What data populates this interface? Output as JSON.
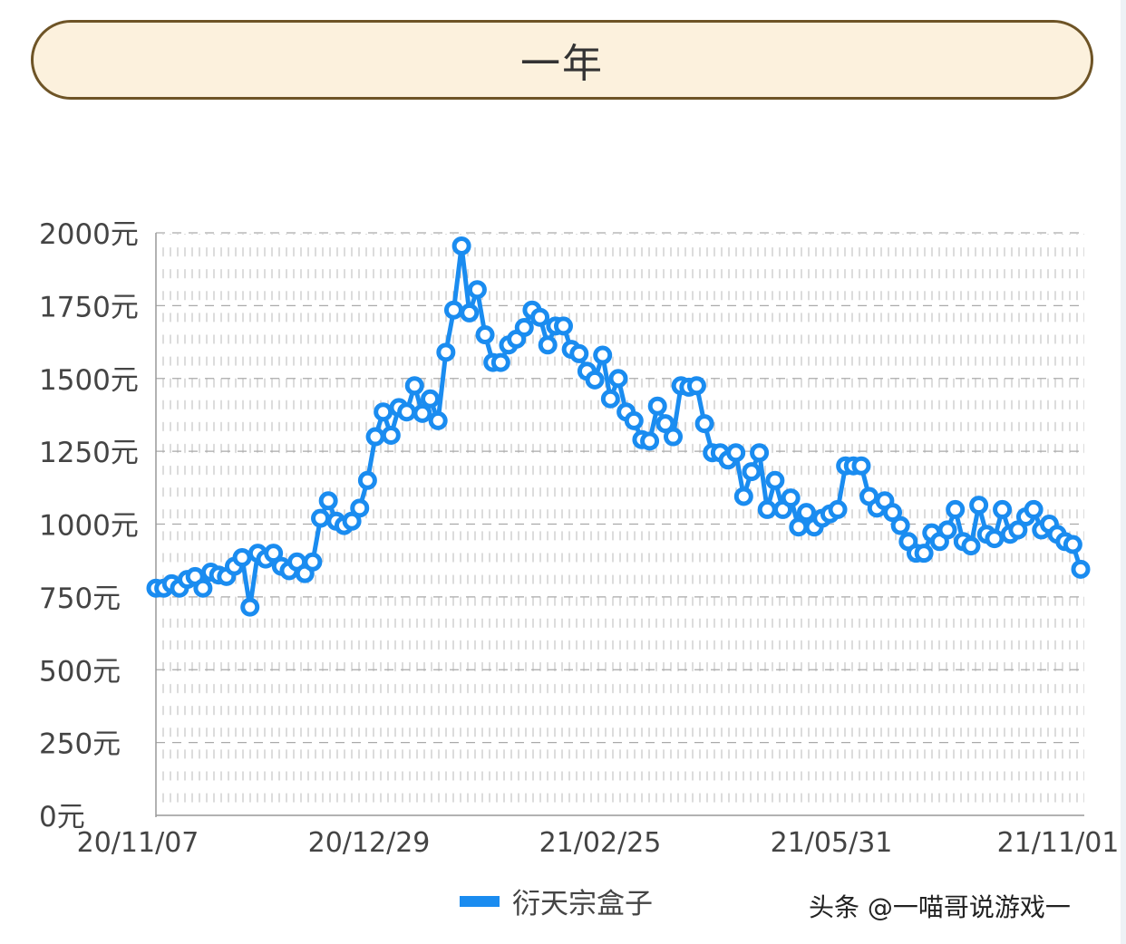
{
  "header": {
    "title": "一年"
  },
  "colors": {
    "line": "#1a8cf0",
    "header_fill": "#fcf1dd",
    "header_border": "#6e5426"
  },
  "watermark": "头条 @一喵哥说游戏一",
  "chart_data": {
    "type": "line",
    "title": "",
    "xlabel": "",
    "ylabel": "",
    "ylim": [
      0,
      2000
    ],
    "y_ticks": [
      0,
      250,
      500,
      750,
      1000,
      1250,
      1500,
      1750,
      2000
    ],
    "y_tick_labels": [
      "0元",
      "250元",
      "500元",
      "750元",
      "1000元",
      "1250元",
      "1500元",
      "1750元",
      "2000元"
    ],
    "x_tick_labels": [
      "20/11/07",
      "20/12/29",
      "21/02/25",
      "21/05/31",
      "21/11/01"
    ],
    "grid": true,
    "legend": "bottom",
    "series": [
      {
        "name": "衍天宗盒子",
        "values": [
          780,
          780,
          795,
          780,
          810,
          820,
          780,
          835,
          825,
          820,
          855,
          885,
          715,
          900,
          880,
          900,
          855,
          840,
          870,
          830,
          870,
          1020,
          1080,
          1010,
          995,
          1010,
          1055,
          1150,
          1300,
          1385,
          1305,
          1400,
          1385,
          1475,
          1380,
          1430,
          1355,
          1590,
          1735,
          1955,
          1725,
          1805,
          1650,
          1555,
          1555,
          1615,
          1635,
          1675,
          1735,
          1710,
          1615,
          1680,
          1680,
          1600,
          1585,
          1525,
          1495,
          1580,
          1430,
          1500,
          1385,
          1355,
          1290,
          1285,
          1405,
          1345,
          1300,
          1475,
          1470,
          1475,
          1345,
          1245,
          1245,
          1220,
          1245,
          1095,
          1180,
          1245,
          1050,
          1150,
          1050,
          1090,
          990,
          1040,
          990,
          1020,
          1035,
          1050,
          1200,
          1200,
          1200,
          1095,
          1055,
          1080,
          1040,
          995,
          940,
          900,
          900,
          970,
          940,
          980,
          1050,
          940,
          925,
          1065,
          965,
          950,
          1050,
          965,
          980,
          1025,
          1050,
          980,
          1000,
          965,
          940,
          930,
          845
        ]
      }
    ]
  }
}
